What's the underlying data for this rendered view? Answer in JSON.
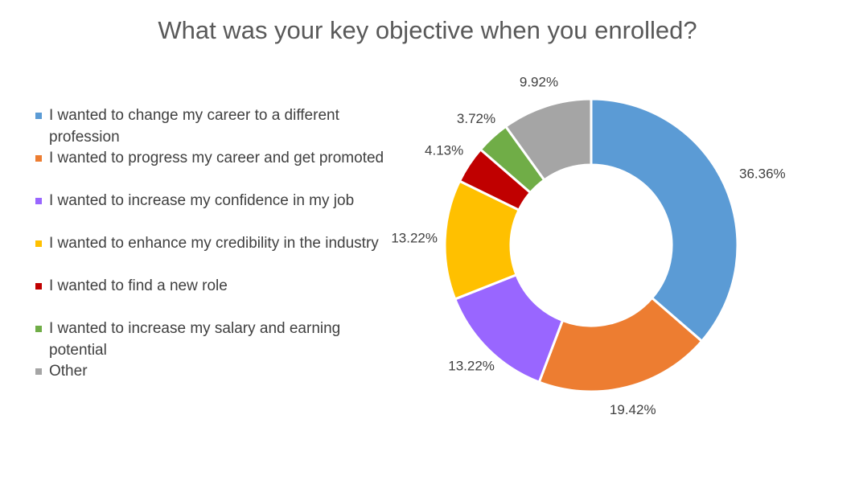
{
  "chart_data": {
    "type": "pie",
    "variant": "doughnut",
    "title": "What was your key objective when you enrolled?",
    "legend_position": "left",
    "slices": [
      {
        "label": "I wanted to change my career to a different profession",
        "value": 36.36,
        "data_label": "36.36%",
        "color": "#5B9BD5"
      },
      {
        "label": "I wanted to progress my career and get promoted",
        "value": 19.42,
        "data_label": "19.42%",
        "color": "#ED7D31"
      },
      {
        "label": "I wanted to increase my confidence in my job",
        "value": 13.22,
        "data_label": "13.22%",
        "color": "#9966FF"
      },
      {
        "label": "I wanted to enhance my credibility in the industry",
        "value": 13.22,
        "data_label": "13.22%",
        "color": "#FFC000"
      },
      {
        "label": "I wanted to find a new role",
        "value": 4.13,
        "data_label": "4.13%",
        "color": "#C00000"
      },
      {
        "label": "I wanted to increase my salary and earning potential",
        "value": 3.72,
        "data_label": "3.72%",
        "color": "#70AD47"
      },
      {
        "label": "Other",
        "value": 9.92,
        "data_label": "9.92%",
        "color": "#A5A5A5"
      }
    ]
  }
}
